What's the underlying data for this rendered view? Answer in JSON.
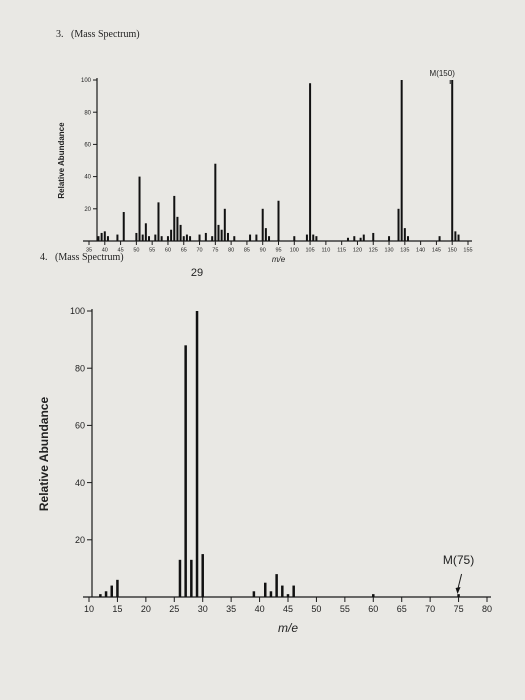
{
  "questions": [
    {
      "number": "3.",
      "heading": "(Mass Spectrum)"
    },
    {
      "number": "4.",
      "heading": "(Mass Spectrum)"
    }
  ],
  "chart_data": [
    {
      "type": "bar",
      "title": "",
      "xlabel": "m/e",
      "ylabel": "Relative Abundance",
      "xlim": [
        35,
        155
      ],
      "ylim": [
        0,
        100
      ],
      "x_ticks": [
        35,
        40,
        45,
        50,
        55,
        60,
        65,
        70,
        75,
        80,
        85,
        90,
        95,
        100,
        105,
        110,
        115,
        120,
        125,
        130,
        135,
        140,
        145,
        150,
        155
      ],
      "y_ticks": [
        20,
        40,
        60,
        80,
        100
      ],
      "annotations": [
        {
          "text": "M(150)",
          "x": 150
        }
      ],
      "x": [
        38,
        39,
        40,
        41,
        44,
        46,
        50,
        51,
        52,
        53,
        54,
        56,
        57,
        58,
        60,
        61,
        62,
        63,
        64,
        65,
        66,
        67,
        70,
        72,
        74,
        75,
        76,
        77,
        78,
        79,
        81,
        86,
        88,
        90,
        91,
        92,
        95,
        100,
        104,
        105,
        106,
        107,
        117,
        119,
        121,
        122,
        125,
        130,
        133,
        134,
        135,
        136,
        146,
        150,
        151,
        152
      ],
      "values": [
        3,
        5,
        6,
        3,
        4,
        18,
        5,
        40,
        4,
        11,
        3,
        4,
        24,
        3,
        3,
        7,
        28,
        15,
        10,
        3,
        4,
        3,
        4,
        5,
        3,
        48,
        10,
        7,
        20,
        5,
        3,
        4,
        4,
        20,
        8,
        3,
        25,
        3,
        4,
        98,
        4,
        3,
        2,
        3,
        2,
        4,
        5,
        3,
        20,
        100,
        8,
        3,
        3,
        100,
        6,
        4
      ]
    },
    {
      "type": "bar",
      "title": "",
      "xlabel": "m/e",
      "ylabel": "Relative Abundance",
      "xlim": [
        10,
        80
      ],
      "ylim": [
        0,
        100
      ],
      "x_ticks": [
        10,
        15,
        20,
        25,
        30,
        35,
        40,
        45,
        50,
        55,
        60,
        65,
        70,
        75,
        80
      ],
      "y_ticks": [
        20,
        40,
        60,
        80,
        100
      ],
      "annotations": [
        {
          "text": "29",
          "x": 29
        },
        {
          "text": "M(75)",
          "x": 75
        }
      ],
      "x": [
        12,
        13,
        14,
        15,
        26,
        27,
        28,
        29,
        30,
        39,
        41,
        42,
        43,
        44,
        45,
        46,
        60,
        75
      ],
      "values": [
        1,
        2,
        4,
        6,
        13,
        88,
        13,
        100,
        15,
        2,
        5,
        2,
        8,
        4,
        1,
        4,
        1,
        1
      ]
    }
  ]
}
